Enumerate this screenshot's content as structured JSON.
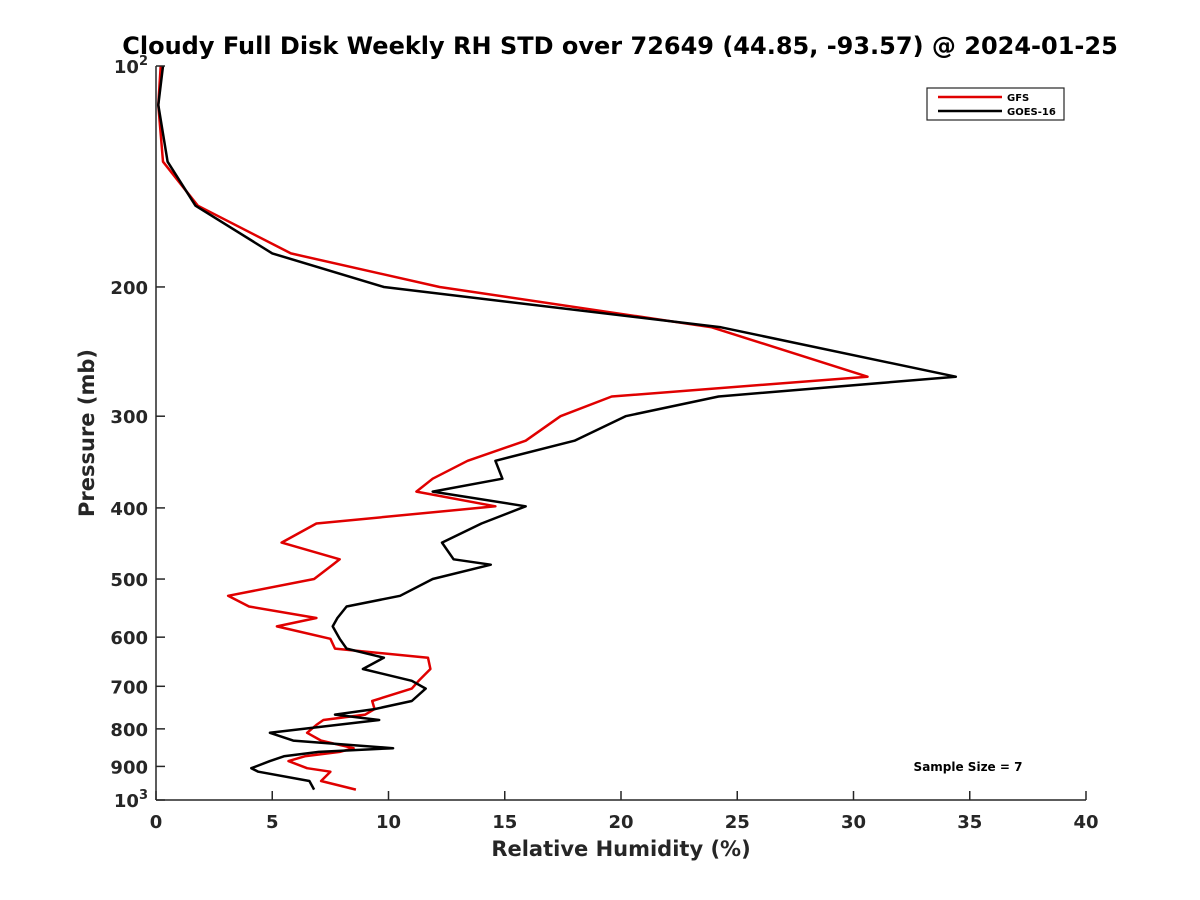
{
  "chart_data": {
    "type": "line",
    "title": "Cloudy Full Disk Weekly RH STD over 72649 (44.85, -93.57) @ 2024-01-25",
    "xlabel": "Relative Humidity (%)",
    "ylabel": "Pressure (mb)",
    "xlim": [
      0,
      40
    ],
    "ylim": [
      100,
      1000
    ],
    "yscale": "log",
    "y_reversed": true,
    "grid": false,
    "legend_position": "top-right",
    "annotation": "Sample Size = 7",
    "x_ticks": [
      "0",
      "5",
      "10",
      "15",
      "20",
      "25",
      "30",
      "35",
      "40"
    ],
    "y_ticks": [
      {
        "value": 100,
        "base": "10",
        "exp": "2"
      },
      {
        "value": 200,
        "label": "200"
      },
      {
        "value": 300,
        "label": "300"
      },
      {
        "value": 400,
        "label": "400"
      },
      {
        "value": 500,
        "label": "500"
      },
      {
        "value": 600,
        "label": "600"
      },
      {
        "value": 700,
        "label": "700"
      },
      {
        "value": 800,
        "label": "800"
      },
      {
        "value": 900,
        "label": "900"
      },
      {
        "value": 1000,
        "base": "10",
        "exp": "3"
      }
    ],
    "series": [
      {
        "name": "GFS",
        "color": "#e00000",
        "points": [
          [
            0.2,
            100
          ],
          [
            0.1,
            113
          ],
          [
            0.3,
            135
          ],
          [
            1.8,
            155
          ],
          [
            5.8,
            180
          ],
          [
            12.2,
            200
          ],
          [
            23.9,
            227
          ],
          [
            30.6,
            265
          ],
          [
            19.6,
            282
          ],
          [
            17.4,
            300
          ],
          [
            15.9,
            324
          ],
          [
            13.4,
            345
          ],
          [
            11.9,
            365
          ],
          [
            11.2,
            380
          ],
          [
            14.6,
            398
          ],
          [
            6.9,
            420
          ],
          [
            5.4,
            446
          ],
          [
            7.9,
            470
          ],
          [
            7.6,
            478
          ],
          [
            6.8,
            500
          ],
          [
            3.1,
            527
          ],
          [
            4.0,
            545
          ],
          [
            6.9,
            565
          ],
          [
            5.2,
            580
          ],
          [
            7.5,
            603
          ],
          [
            7.7,
            622
          ],
          [
            11.7,
            640
          ],
          [
            11.8,
            663
          ],
          [
            11.3,
            688
          ],
          [
            11.0,
            705
          ],
          [
            9.3,
            733
          ],
          [
            9.4,
            752
          ],
          [
            9.0,
            765
          ],
          [
            7.2,
            778
          ],
          [
            6.9,
            790
          ],
          [
            6.5,
            810
          ],
          [
            7.1,
            830
          ],
          [
            8.5,
            850
          ],
          [
            7.9,
            860
          ],
          [
            6.4,
            872
          ],
          [
            5.7,
            885
          ],
          [
            6.5,
            905
          ],
          [
            7.5,
            915
          ],
          [
            7.1,
            942
          ],
          [
            8.6,
            968
          ]
        ]
      },
      {
        "name": "GOES-16",
        "color": "#000000",
        "points": [
          [
            0.3,
            100
          ],
          [
            0.1,
            113
          ],
          [
            0.5,
            135
          ],
          [
            1.7,
            155
          ],
          [
            5.0,
            180
          ],
          [
            9.8,
            200
          ],
          [
            24.3,
            227
          ],
          [
            34.4,
            265
          ],
          [
            24.2,
            282
          ],
          [
            20.2,
            300
          ],
          [
            18.0,
            324
          ],
          [
            14.6,
            345
          ],
          [
            14.9,
            365
          ],
          [
            11.9,
            380
          ],
          [
            15.9,
            398
          ],
          [
            14.0,
            420
          ],
          [
            12.3,
            446
          ],
          [
            12.8,
            470
          ],
          [
            14.4,
            478
          ],
          [
            11.9,
            500
          ],
          [
            10.5,
            527
          ],
          [
            8.2,
            545
          ],
          [
            7.8,
            565
          ],
          [
            7.6,
            580
          ],
          [
            7.9,
            603
          ],
          [
            8.2,
            622
          ],
          [
            9.8,
            640
          ],
          [
            8.9,
            663
          ],
          [
            11.0,
            688
          ],
          [
            11.6,
            705
          ],
          [
            11.0,
            733
          ],
          [
            9.4,
            752
          ],
          [
            7.7,
            765
          ],
          [
            9.6,
            778
          ],
          [
            7.8,
            790
          ],
          [
            4.9,
            810
          ],
          [
            5.9,
            830
          ],
          [
            10.2,
            850
          ],
          [
            7.0,
            860
          ],
          [
            5.5,
            872
          ],
          [
            4.9,
            885
          ],
          [
            4.1,
            905
          ],
          [
            4.4,
            915
          ],
          [
            6.6,
            942
          ],
          [
            6.8,
            968
          ]
        ]
      }
    ]
  }
}
